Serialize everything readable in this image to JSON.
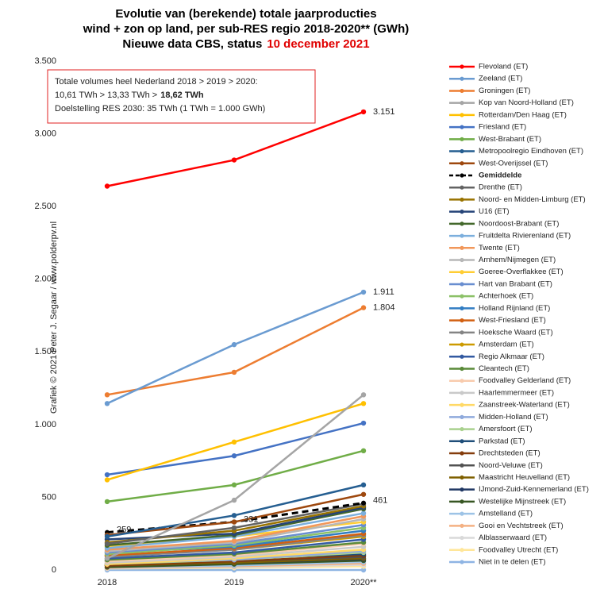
{
  "chart_data": {
    "type": "line",
    "title": [
      "Evolutie van (berekende) totale jaarproducties",
      "wind + zon op land, per sub-RES regio 2018-2020** (GWh)"
    ],
    "subtitle": "Nieuwe data CBS, status",
    "subtitle_date": "10 december 2021",
    "annotation": [
      "Totale volumes heel Nederland 2018 > 2019 > 2020:",
      "10,61 TWh > 13,33 TWh >",
      "18,62 TWh",
      "Doelstelling RES 2030: 35 TWh (1 TWh = 1.000 GWh)"
    ],
    "credit": "Grafiek © 2021 Peter J. Segaar / www.polderpv.nl",
    "categories": [
      "2018",
      "2019",
      "2020**"
    ],
    "ylim": [
      0,
      3500
    ],
    "yticks": [
      0,
      500,
      {
        "value": 1000,
        "label": "1.000"
      },
      {
        "value": 1500,
        "label": "1.500"
      },
      {
        "value": 2000,
        "label": "2.000"
      },
      {
        "value": 2500,
        "label": "2.500"
      },
      {
        "value": 3000,
        "label": "3.000"
      },
      {
        "value": 3500,
        "label": "3.500"
      }
    ],
    "grid": false,
    "legend": "right",
    "series": [
      {
        "name": "Flevoland (ET)",
        "color": "#ff0000",
        "values": [
          2640,
          2820,
          3151
        ],
        "value_labels": [
          null,
          null,
          "3.151"
        ]
      },
      {
        "name": "Zeeland (ET)",
        "color": "#6a9bd1",
        "values": [
          1145,
          1550,
          1911
        ],
        "value_labels": [
          null,
          null,
          "1.911"
        ]
      },
      {
        "name": "Groningen (ET)",
        "color": "#ed7d31",
        "values": [
          1205,
          1360,
          1804
        ],
        "value_labels": [
          null,
          null,
          "1.804"
        ]
      },
      {
        "name": "Kop van Noord-Holland (ET)",
        "color": "#a5a5a5",
        "values": [
          80,
          480,
          1205
        ]
      },
      {
        "name": "Rotterdam/Den Haag (ET)",
        "color": "#ffc000",
        "values": [
          620,
          880,
          1145
        ]
      },
      {
        "name": "Friesland (ET)",
        "color": "#4472c4",
        "values": [
          655,
          785,
          1010
        ]
      },
      {
        "name": "West-Brabant (ET)",
        "color": "#70ad47",
        "values": [
          470,
          585,
          820
        ]
      },
      {
        "name": "Metropoolregio Eindhoven (ET)",
        "color": "#255e91",
        "values": [
          230,
          375,
          585
        ]
      },
      {
        "name": "West-Overijssel (ET)",
        "color": "#9e480e",
        "values": [
          240,
          330,
          520
        ]
      },
      {
        "name": "Gemiddelde",
        "color": "#000000",
        "dashed": true,
        "values": [
          259,
          331,
          461
        ],
        "value_labels": [
          "259",
          "331",
          "461"
        ]
      },
      {
        "name": "Drenthe (ET)",
        "color": "#636363",
        "values": [
          180,
          290,
          455
        ]
      },
      {
        "name": "Noord- en Midden-Limburg (ET)",
        "color": "#997300",
        "values": [
          190,
          270,
          440
        ]
      },
      {
        "name": "U16 (ET)",
        "color": "#264478",
        "values": [
          210,
          250,
          430
        ]
      },
      {
        "name": "Noordoost-Brabant (ET)",
        "color": "#43682b",
        "values": [
          170,
          240,
          420
        ]
      },
      {
        "name": "Fruitdelta Rivierenland (ET)",
        "color": "#7cafdd",
        "values": [
          150,
          230,
          390
        ]
      },
      {
        "name": "Twente (ET)",
        "color": "#f1975a",
        "values": [
          140,
          200,
          370
        ]
      },
      {
        "name": "Arnhem/Nijmegen (ET)",
        "color": "#b7b7b7",
        "values": [
          130,
          190,
          350
        ]
      },
      {
        "name": "Goeree-Overflakkee (ET)",
        "color": "#ffcd33",
        "values": [
          160,
          230,
          330
        ]
      },
      {
        "name": "Hart van Brabant (ET)",
        "color": "#698ed0",
        "values": [
          120,
          180,
          310
        ]
      },
      {
        "name": "Achterhoek (ET)",
        "color": "#8cc168",
        "values": [
          110,
          170,
          290
        ]
      },
      {
        "name": "Holland Rijnland (ET)",
        "color": "#327dc2",
        "values": [
          120,
          160,
          270
        ]
      },
      {
        "name": "West-Friesland (ET)",
        "color": "#d26012",
        "values": [
          100,
          150,
          250
        ]
      },
      {
        "name": "Hoeksche Waard (ET)",
        "color": "#848484",
        "values": [
          90,
          140,
          240
        ]
      },
      {
        "name": "Amsterdam (ET)",
        "color": "#cc9a00",
        "values": [
          100,
          140,
          230
        ]
      },
      {
        "name": "Regio Alkmaar (ET)",
        "color": "#335aa1",
        "values": [
          80,
          120,
          210
        ]
      },
      {
        "name": "Cleantech (ET)",
        "color": "#5a8a39",
        "values": [
          70,
          110,
          190
        ]
      },
      {
        "name": "Foodvalley Gelderland (ET)",
        "color": "#f8cbad",
        "values": [
          60,
          100,
          180
        ]
      },
      {
        "name": "Haarlemmermeer (ET)",
        "color": "#c9c9c9",
        "values": [
          50,
          90,
          160
        ]
      },
      {
        "name": "Zaanstreek-Waterland (ET)",
        "color": "#ffd966",
        "values": [
          40,
          80,
          140
        ]
      },
      {
        "name": "Midden-Holland (ET)",
        "color": "#8faadc",
        "values": [
          50,
          70,
          130
        ]
      },
      {
        "name": "Amersfoort (ET)",
        "color": "#a9d18e",
        "values": [
          40,
          70,
          120
        ]
      },
      {
        "name": "Parkstad (ET)",
        "color": "#1f4e79",
        "values": [
          60,
          80,
          110
        ]
      },
      {
        "name": "Drechtsteden (ET)",
        "color": "#843c0c",
        "values": [
          30,
          60,
          100
        ]
      },
      {
        "name": "Noord-Veluwe (ET)",
        "color": "#525252",
        "values": [
          40,
          60,
          90
        ]
      },
      {
        "name": "Maastricht Heuvelland (ET)",
        "color": "#7f6000",
        "values": [
          30,
          50,
          80
        ]
      },
      {
        "name": "IJmond-Zuid-Kennemerland (ET)",
        "color": "#203864",
        "values": [
          30,
          50,
          75
        ]
      },
      {
        "name": "Westelijke Mijnstreek (ET)",
        "color": "#375623",
        "values": [
          20,
          40,
          65
        ]
      },
      {
        "name": "Amstelland (ET)",
        "color": "#9dc3e6",
        "values": [
          20,
          30,
          55
        ]
      },
      {
        "name": "Gooi en Vechtstreek (ET)",
        "color": "#f4b183",
        "values": [
          15,
          25,
          45
        ]
      },
      {
        "name": "Alblasserwaard (ET)",
        "color": "#d9d9d9",
        "values": [
          10,
          20,
          35
        ]
      },
      {
        "name": "Foodvalley Utrecht (ET)",
        "color": "#ffe699",
        "values": [
          10,
          15,
          25
        ]
      },
      {
        "name": "Niet in te delen (ET)",
        "color": "#8eb4e3",
        "values": [
          0,
          0,
          0
        ]
      }
    ]
  }
}
